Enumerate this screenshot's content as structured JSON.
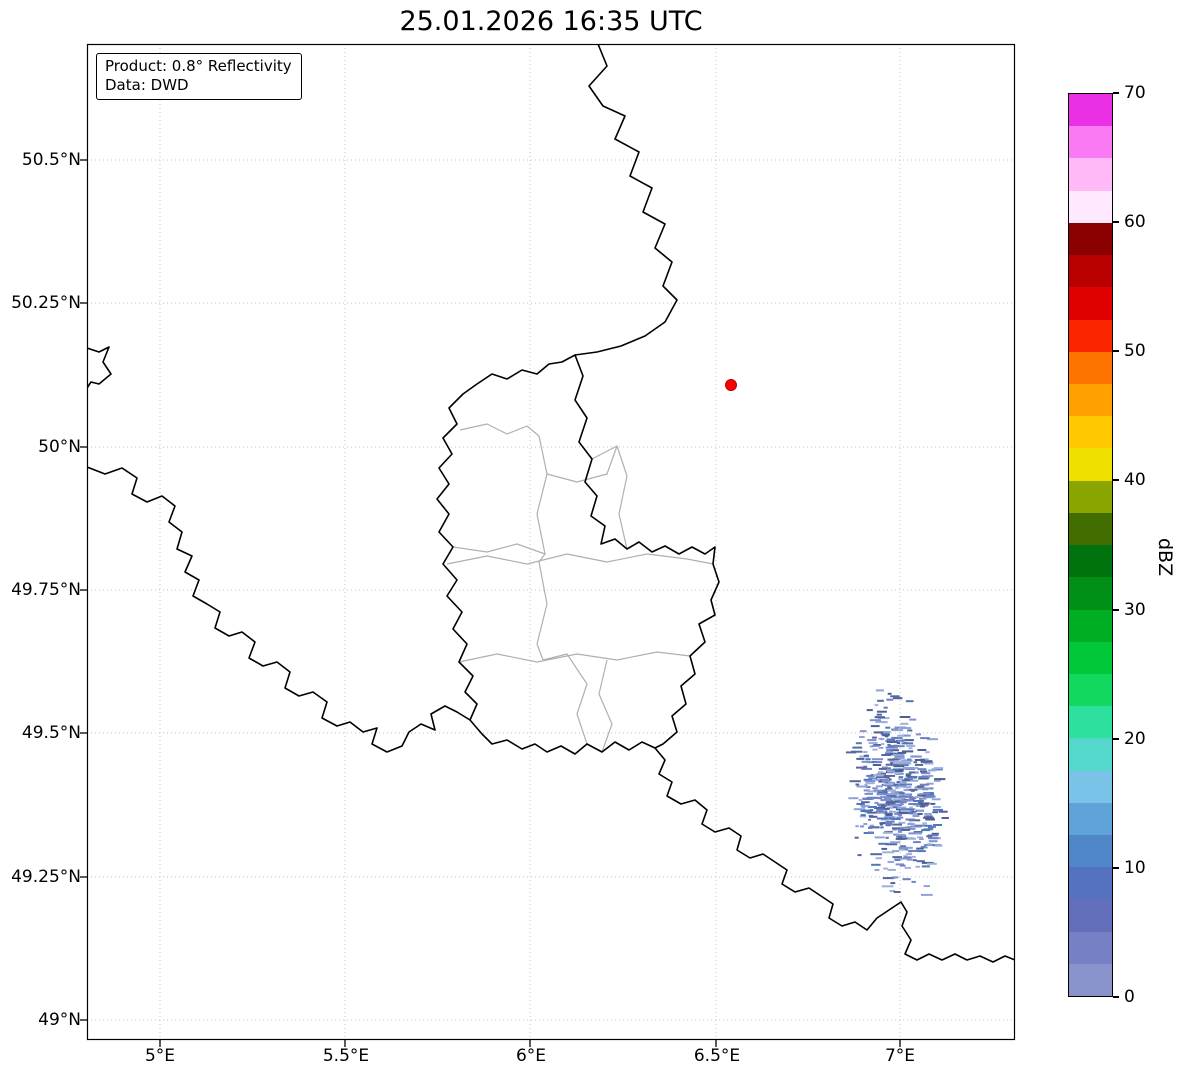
{
  "title": "25.01.2026 16:35 UTC",
  "info_box": {
    "line1": "Product: 0.8° Reflectivity",
    "line2": "Data: DWD"
  },
  "axes": {
    "lat_ticks": [
      "50.5°N",
      "50.25°N",
      "50°N",
      "49.75°N",
      "49.5°N",
      "49.25°N",
      "49°N"
    ],
    "lon_ticks": [
      "5°E",
      "5.5°E",
      "6°E",
      "6.5°E",
      "7°E"
    ]
  },
  "colorbar": {
    "label": "dBZ",
    "tick_labels": [
      "70",
      "60",
      "50",
      "40",
      "30",
      "20",
      "10",
      "0"
    ],
    "range": [
      0,
      70
    ],
    "colors_bottom_to_top": [
      "#8a92cc",
      "#7680c4",
      "#636fba",
      "#5572c0",
      "#4f86c8",
      "#5ea4d8",
      "#79c2e8",
      "#55d8cc",
      "#2ee09e",
      "#12d860",
      "#00c838",
      "#00ae24",
      "#009018",
      "#00720e",
      "#426e00",
      "#8aa400",
      "#f0e000",
      "#ffc800",
      "#ffa000",
      "#ff7400",
      "#fb2500",
      "#e00000",
      "#b80000",
      "#8b0000",
      "#ffe9ff",
      "#feb9f6",
      "#f97af2",
      "#ea2fe4"
    ]
  },
  "map": {
    "radar_site_marker_color": "#ff0000",
    "country_border_color": "#000000",
    "district_border_color": "#b0b0b0",
    "echo_colors": [
      "#6b80c2",
      "#58689c",
      "#7d90cd",
      "#8fa2d8",
      "#4e5f96",
      "#9fb0dd",
      "#4f78b8"
    ],
    "radar_echo": {
      "approx_lon_range": "6.9°E–7.1°E",
      "approx_lat_range": "49.2°N–49.6°N",
      "approx_dbz_range": "0–15 dBZ"
    }
  }
}
